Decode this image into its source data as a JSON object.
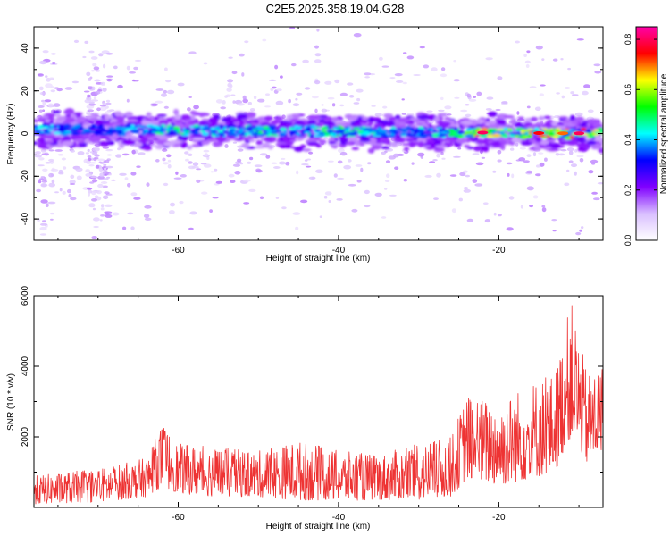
{
  "chart_data": [
    {
      "type": "heatmap",
      "title": "C2E5.2025.358.19.04.G28",
      "xlabel": "Height of straight line (km)",
      "ylabel": "Frequency (Hz)",
      "xlim": [
        -78,
        -7
      ],
      "ylim": [
        -50,
        50
      ],
      "x_ticks": [
        -60,
        -40,
        -20
      ],
      "y_ticks": [
        -40,
        -20,
        0,
        20,
        40
      ],
      "colorbar": {
        "label": "Normalized spectral amplitude",
        "range": [
          0.0,
          0.85
        ],
        "ticks": [
          "0.0",
          "0.2",
          "0.4",
          "0.6",
          "0.8"
        ],
        "colormap": [
          "#ffffff",
          "#d9bfff",
          "#8000ff",
          "#0000ff",
          "#00ffff",
          "#00ff00",
          "#ffff00",
          "#ff0000",
          "#ff00aa"
        ]
      },
      "ridge": {
        "frequency_hz_start": 2,
        "frequency_hz_end": 0,
        "amplitude_by_height": [
          {
            "x": -76,
            "amp": 0.45
          },
          {
            "x": -70,
            "amp": 0.35
          },
          {
            "x": -65,
            "amp": 0.45
          },
          {
            "x": -60,
            "amp": 0.55
          },
          {
            "x": -55,
            "amp": 0.45
          },
          {
            "x": -50,
            "amp": 0.5
          },
          {
            "x": -45,
            "amp": 0.45
          },
          {
            "x": -40,
            "amp": 0.55
          },
          {
            "x": -35,
            "amp": 0.45
          },
          {
            "x": -30,
            "amp": 0.45
          },
          {
            "x": -25,
            "amp": 0.55
          },
          {
            "x": -22,
            "amp": 0.8
          },
          {
            "x": -18,
            "amp": 0.6
          },
          {
            "x": -15,
            "amp": 0.75
          },
          {
            "x": -12,
            "amp": 0.7
          },
          {
            "x": -10,
            "amp": 0.8
          },
          {
            "x": -7,
            "amp": 0.6
          }
        ]
      }
    },
    {
      "type": "line",
      "xlabel": "Height of straight line (km)",
      "ylabel": "SNR (10 * v/v)",
      "xlim": [
        -78,
        -7
      ],
      "ylim": [
        0,
        6000
      ],
      "x_ticks": [
        -60,
        -40,
        -20
      ],
      "y_ticks": [
        2000,
        4000,
        6000
      ],
      "color": "#ee3333",
      "envelope": [
        {
          "x": -78,
          "low": 100,
          "high": 900
        },
        {
          "x": -70,
          "low": 150,
          "high": 1100
        },
        {
          "x": -64,
          "low": 300,
          "high": 1400
        },
        {
          "x": -62,
          "low": 600,
          "high": 2400
        },
        {
          "x": -60,
          "low": 400,
          "high": 1800
        },
        {
          "x": -55,
          "low": 300,
          "high": 1700
        },
        {
          "x": -50,
          "low": 300,
          "high": 1600
        },
        {
          "x": -45,
          "low": 200,
          "high": 1900
        },
        {
          "x": -40,
          "low": 200,
          "high": 1600
        },
        {
          "x": -35,
          "low": 200,
          "high": 1500
        },
        {
          "x": -30,
          "low": 200,
          "high": 1800
        },
        {
          "x": -26,
          "low": 300,
          "high": 2000
        },
        {
          "x": -24,
          "low": 800,
          "high": 3200
        },
        {
          "x": -20,
          "low": 600,
          "high": 3000
        },
        {
          "x": -16,
          "low": 800,
          "high": 3600
        },
        {
          "x": -13,
          "low": 1000,
          "high": 3800
        },
        {
          "x": -11,
          "low": 2000,
          "high": 5900
        },
        {
          "x": -9,
          "low": 1200,
          "high": 3800
        },
        {
          "x": -7,
          "low": 1600,
          "high": 4100
        }
      ]
    }
  ]
}
